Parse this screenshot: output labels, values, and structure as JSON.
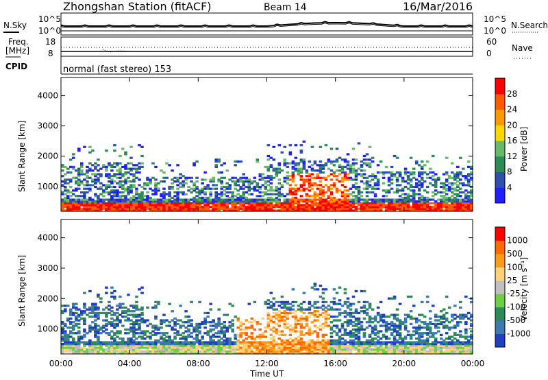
{
  "header": {
    "station": "Zhongshan Station (fitACF)",
    "beam": "Beam 14",
    "date": "16/Mar/2016"
  },
  "noise_panel": {
    "left_label": "N.Sky",
    "right_label": "N.Search",
    "ticks_left": [
      "10^5",
      "10^0"
    ],
    "ticks_right": [
      "10^5",
      "10^0"
    ]
  },
  "freq_panel": {
    "left_label_1": "Freq.",
    "left_label_2": "[MHz]",
    "ticks_left": [
      "18",
      "8"
    ],
    "right_label": "Nave",
    "ticks_right": [
      "60",
      "0"
    ]
  },
  "cpid": {
    "label": "CPID",
    "value": "normal (fast stereo) 153"
  },
  "chart_data": [
    {
      "type": "heatmap",
      "panel": "power",
      "ylabel": "Slant Range [km]",
      "xlabel": "",
      "yticks": [
        "1000",
        "2000",
        "3000",
        "4000"
      ],
      "ylim": [
        180,
        4600
      ],
      "colorbar_label": "Power [dB]",
      "colorbar_ticks": [
        "4",
        "8",
        "12",
        "16",
        "20",
        "24",
        "28"
      ],
      "colors": [
        "#2020ff",
        "#3050b0",
        "#2e8b57",
        "#66bb66",
        "#ffd700",
        "#ff9900",
        "#ff5a00",
        "#ff0000"
      ]
    },
    {
      "type": "heatmap",
      "panel": "velocity",
      "ylabel": "Slant Range [km]",
      "xlabel": "Time UT",
      "xticks": [
        "00:00",
        "04:00",
        "08:00",
        "12:00",
        "16:00",
        "20:00",
        "00:00"
      ],
      "yticks": [
        "1000",
        "2000",
        "3000",
        "4000"
      ],
      "ylim": [
        180,
        4600
      ],
      "colorbar_label": "Velocity [m s⁻¹]",
      "colorbar_ticks": [
        "1000",
        "500",
        "100",
        "25",
        "-25",
        "-100",
        "-500",
        "-1000"
      ],
      "colors": [
        "#2040c0",
        "#3d7ab0",
        "#2e8b57",
        "#6ccf4a",
        "#c0c0c0",
        "#ffd27a",
        "#ff9a1a",
        "#ff6a00",
        "#ff0000"
      ]
    }
  ]
}
